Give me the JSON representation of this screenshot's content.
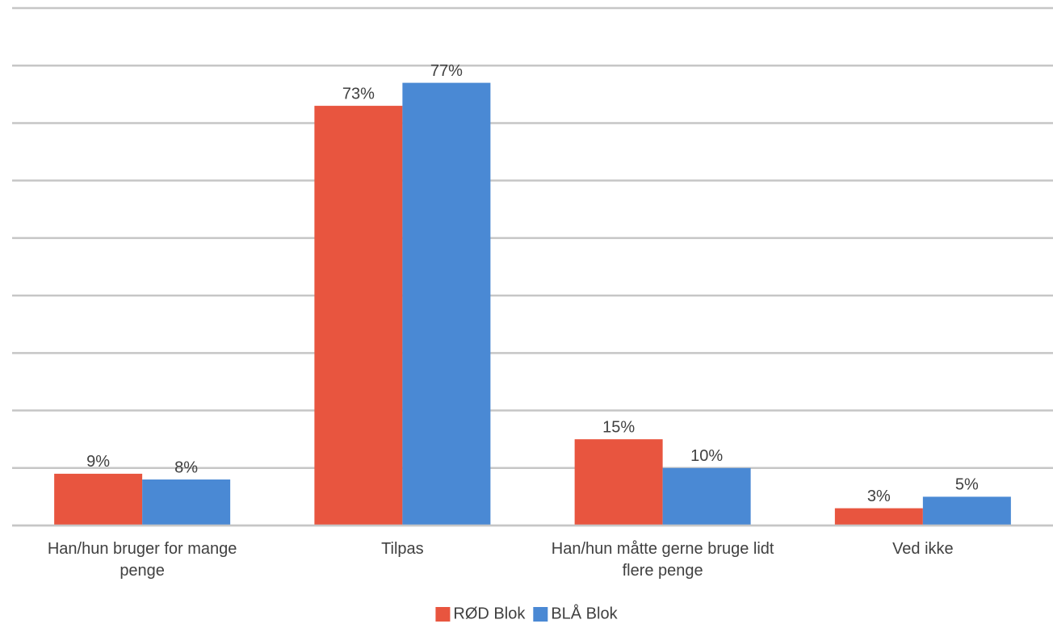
{
  "chart_data": {
    "type": "bar",
    "categories": [
      "Han/hun bruger for mange penge",
      "Tilpas",
      "Han/hun måtte gerne bruge lidt flere penge",
      "Ved ikke"
    ],
    "series": [
      {
        "name": "RØD Blok",
        "color": "#e8553f",
        "values": [
          9,
          73,
          15,
          3
        ],
        "value_labels": [
          "9%",
          "73%",
          "15%",
          "3%"
        ]
      },
      {
        "name": "BLÅ Blok",
        "color": "#4a89d4",
        "values": [
          8,
          77,
          10,
          5
        ],
        "value_labels": [
          "8%",
          "77%",
          "10%",
          "5%"
        ]
      }
    ],
    "ylim": [
      0,
      90
    ],
    "yticks": [
      0,
      10,
      20,
      30,
      40,
      50,
      60,
      70,
      80,
      90
    ],
    "grid": true,
    "legend": "bottom"
  }
}
